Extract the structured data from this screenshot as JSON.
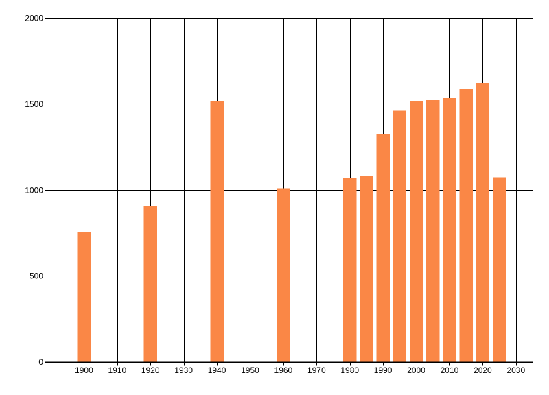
{
  "chart_data": {
    "type": "bar",
    "title": "",
    "xlabel": "",
    "ylabel": "",
    "x": [
      1900,
      1920,
      1940,
      1960,
      1980,
      1985,
      1990,
      1995,
      2000,
      2005,
      2010,
      2015,
      2020,
      2025
    ],
    "values": [
      755,
      903,
      1513,
      1009,
      1068,
      1083,
      1326,
      1459,
      1518,
      1521,
      1533,
      1585,
      1622,
      1073
    ],
    "xlim": [
      1890,
      2035
    ],
    "ylim": [
      0,
      2000
    ],
    "x_ticks": [
      1900,
      1910,
      1920,
      1930,
      1940,
      1950,
      1960,
      1970,
      1980,
      1990,
      2000,
      2010,
      2020,
      2030
    ],
    "y_ticks": [
      0,
      500,
      1000,
      1500,
      2000
    ],
    "bar_width_years": 4,
    "grid": true,
    "legend": null,
    "colors": {
      "bar": "#FA8746",
      "grid": "#000000",
      "axis": "#000000",
      "tick_label": "#000000",
      "background": "#FFFFFF"
    }
  }
}
